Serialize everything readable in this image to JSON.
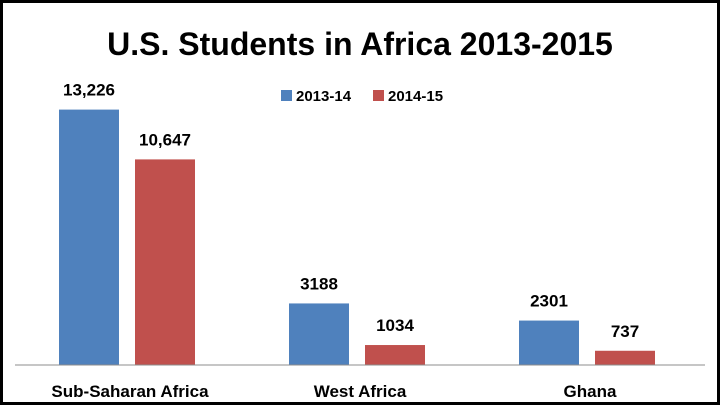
{
  "chart_data": {
    "type": "bar",
    "title": "U.S. Students in Africa 2013-2015",
    "categories": [
      "Sub-Saharan Africa",
      "West Africa",
      "Ghana"
    ],
    "series": [
      {
        "name": "2013-14",
        "color": "#4f81bd",
        "values": [
          13226,
          3188,
          2301
        ],
        "value_labels": [
          "13,226",
          "3188",
          "2301"
        ]
      },
      {
        "name": "2014-15",
        "color": "#c0504d",
        "values": [
          10647,
          1034,
          737
        ],
        "value_labels": [
          "10,647",
          "1034",
          "737"
        ]
      }
    ],
    "ylim": [
      0,
      14500
    ],
    "grid": false,
    "y_axis_visible": false,
    "legend_position": "top-center"
  }
}
